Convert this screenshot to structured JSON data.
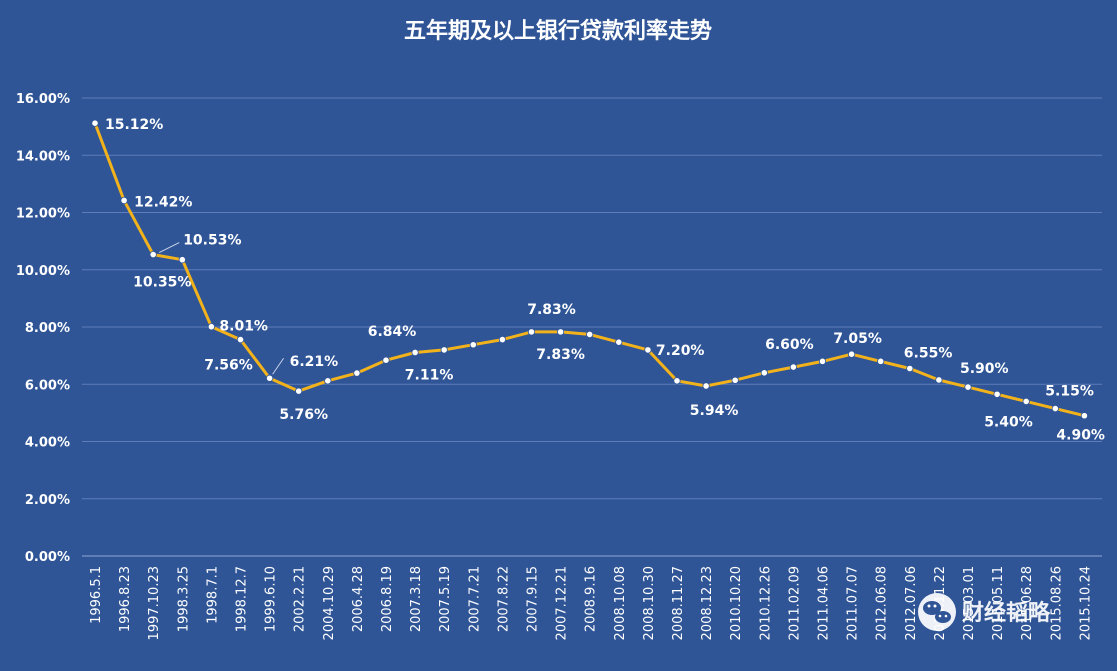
{
  "chart_data": {
    "type": "line",
    "title": "五年期及以上银行贷款利率走势",
    "xlabel": "",
    "ylabel": "",
    "ylim": [
      0,
      16
    ],
    "y_tick_labels": [
      "0.00%",
      "2.00%",
      "4.00%",
      "6.00%",
      "8.00%",
      "10.00%",
      "12.00%",
      "14.00%",
      "16.00%"
    ],
    "grid": true,
    "legend": "none",
    "line_color": "#F2B21B",
    "background": "#2F5597",
    "x": [
      "1996.5.1",
      "1996.8.23",
      "1997.10.23",
      "1998.3.25",
      "1998.7.1",
      "1998.12.7",
      "1999.6.10",
      "2002.2.21",
      "2004.10.29",
      "2006.4.28",
      "2006.8.19",
      "2007.3.18",
      "2007.5.19",
      "2007.7.21",
      "2007.8.22",
      "2007.9.15",
      "2007.12.21",
      "2008.9.16",
      "2008.10.08",
      "2008.10.30",
      "2008.11.27",
      "2008.12.23",
      "2010.10.20",
      "2010.12.26",
      "2011.02.09",
      "2011.04.06",
      "2011.07.07",
      "2012.06.08",
      "2012.07.06",
      "2014.11.22",
      "2015.03.01",
      "2015.05.11",
      "2015.06.28",
      "2015.08.26",
      "2015.10.24"
    ],
    "series": [
      {
        "values": [
          15.12,
          12.42,
          10.53,
          10.35,
          8.01,
          7.56,
          6.21,
          5.76,
          6.12,
          6.39,
          6.84,
          7.11,
          7.2,
          7.38,
          7.56,
          7.83,
          7.83,
          7.74,
          7.47,
          7.2,
          6.12,
          5.94,
          6.14,
          6.4,
          6.6,
          6.8,
          7.05,
          6.8,
          6.55,
          6.15,
          5.9,
          5.65,
          5.4,
          5.15,
          4.9
        ]
      }
    ],
    "data_labels": [
      {
        "index": 0,
        "text": "15.12%"
      },
      {
        "index": 1,
        "text": "12.42%"
      },
      {
        "index": 2,
        "text": "10.53%"
      },
      {
        "index": 3,
        "text": "10.35%"
      },
      {
        "index": 4,
        "text": "8.01%"
      },
      {
        "index": 5,
        "text": "7.56%"
      },
      {
        "index": 6,
        "text": "6.21%"
      },
      {
        "index": 7,
        "text": "5.76%"
      },
      {
        "index": 10,
        "text": "6.84%"
      },
      {
        "index": 11,
        "text": "7.11%"
      },
      {
        "index": 15,
        "text": "7.83%"
      },
      {
        "index": 16,
        "text": "7.83%"
      },
      {
        "index": 19,
        "text": "7.20%"
      },
      {
        "index": 21,
        "text": "5.94%"
      },
      {
        "index": 24,
        "text": "6.60%"
      },
      {
        "index": 26,
        "text": "7.05%"
      },
      {
        "index": 28,
        "text": "6.55%"
      },
      {
        "index": 30,
        "text": "5.90%"
      },
      {
        "index": 32,
        "text": "5.40%"
      },
      {
        "index": 33,
        "text": "5.15%"
      },
      {
        "index": 34,
        "text": "4.90%"
      }
    ]
  },
  "watermark": {
    "text": "财经韬略",
    "icon": "wechat-icon"
  }
}
